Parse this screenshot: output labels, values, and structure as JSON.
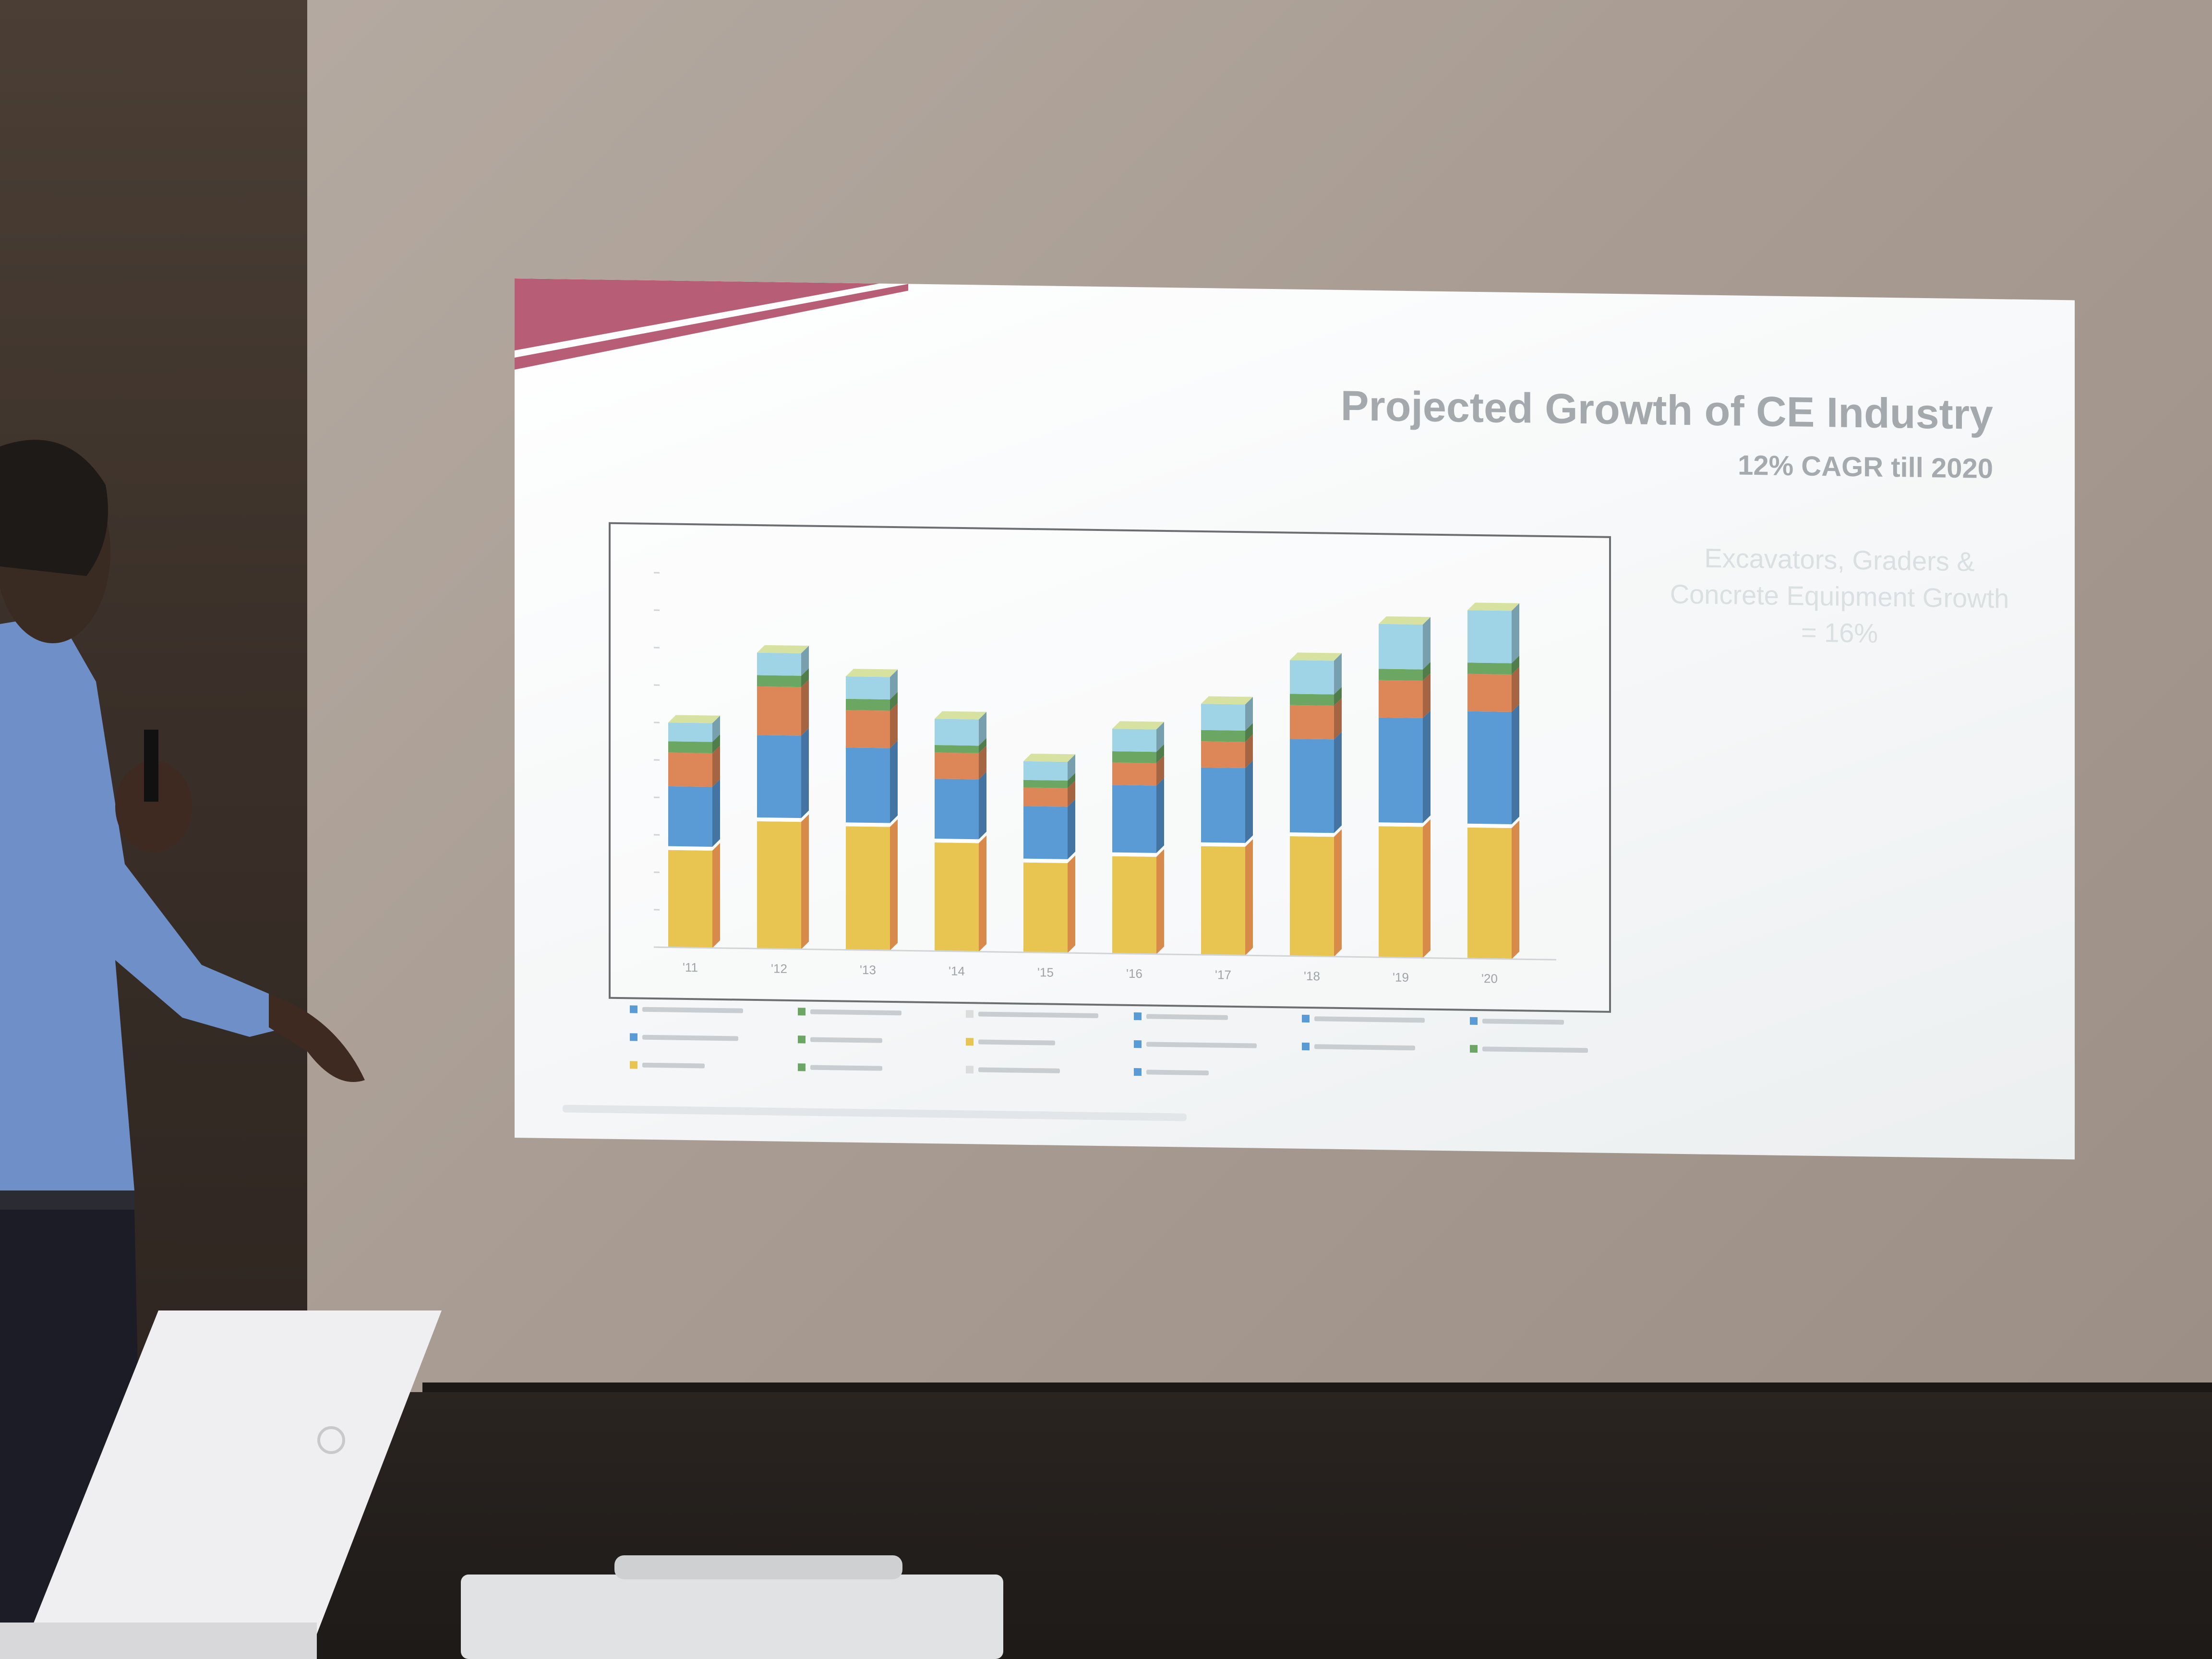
{
  "slide": {
    "title": "Projected Growth of CE Industry",
    "subtitle": "12% CAGR till 2020",
    "callout": "Excavators, Graders & Concrete Equipment Growth = 16%",
    "colors": {
      "ribbon": "#b85d76",
      "title": "#a3a9ad"
    }
  },
  "chart_data": {
    "type": "bar",
    "stacked": true,
    "categories": [
      "'11",
      "'12",
      "'13",
      "'14",
      "'15",
      "'16",
      "'17",
      "'18",
      "'19",
      "'20"
    ],
    "ylim": [
      0,
      100
    ],
    "series": [
      {
        "color": "#e8c451",
        "values": [
          26,
          34,
          33,
          29,
          24,
          26,
          29,
          32,
          35,
          35
        ]
      },
      {
        "color": "#5a9bd6",
        "values": [
          16,
          22,
          20,
          16,
          14,
          18,
          20,
          25,
          28,
          30
        ]
      },
      {
        "color": "#dd8658",
        "values": [
          9,
          13,
          10,
          7,
          5,
          6,
          7,
          9,
          10,
          10
        ]
      },
      {
        "color": "#6ba662",
        "values": [
          3,
          3,
          3,
          2,
          2,
          3,
          3,
          3,
          3,
          3
        ]
      },
      {
        "color": "#9fd4e6",
        "values": [
          5,
          6,
          6,
          7,
          5,
          6,
          7,
          9,
          12,
          14
        ]
      }
    ]
  }
}
